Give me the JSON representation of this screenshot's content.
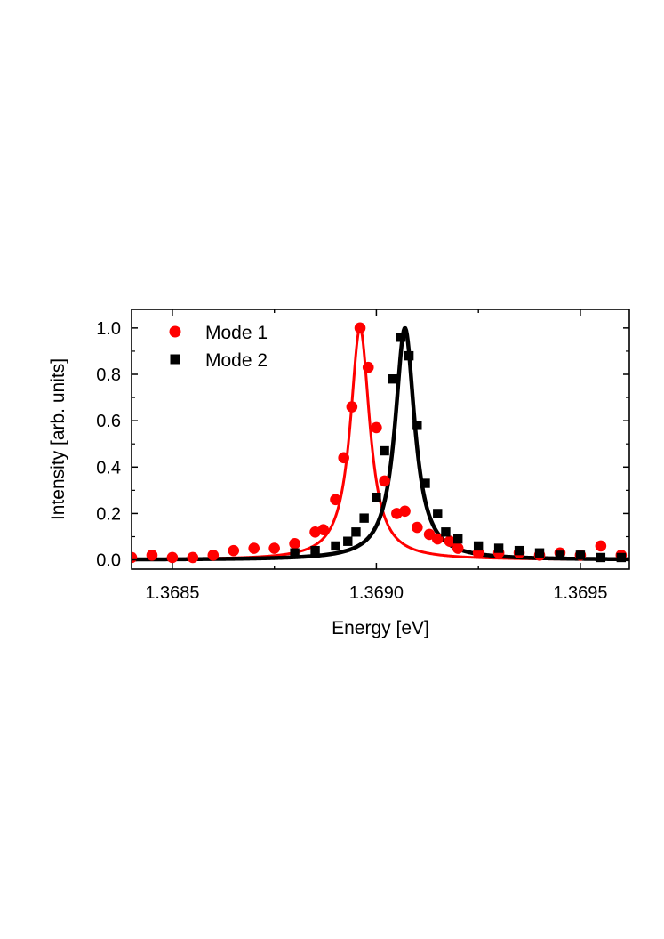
{
  "chart_data": {
    "type": "scatter",
    "title": "",
    "xlabel": "Energy [eV]",
    "ylabel": "Intensity [arb. units]",
    "xlim": [
      1.3684,
      1.36962
    ],
    "ylim": [
      -0.04,
      1.08
    ],
    "xticks": [
      1.3685,
      1.369,
      1.3695
    ],
    "xtick_labels": [
      "1.3685",
      "1.3690",
      "1.3695"
    ],
    "yticks": [
      0.0,
      0.2,
      0.4,
      0.6,
      0.8,
      1.0
    ],
    "ytick_labels": [
      "0.0",
      "0.2",
      "0.4",
      "0.6",
      "0.8",
      "1.0"
    ],
    "legend_position": "top-left",
    "series": [
      {
        "name": "Mode 1",
        "label": "Mode 1",
        "marker": "circle",
        "color": "#ff0000",
        "fit": {
          "model": "lorentzian",
          "center": 1.36896,
          "fwhm": 5.75e-05,
          "amplitude": 1.0,
          "offset": 0.0
        },
        "x": [
          1.3684,
          1.36845,
          1.3685,
          1.36855,
          1.3686,
          1.36865,
          1.3687,
          1.36875,
          1.3688,
          1.36885,
          1.36887,
          1.3689,
          1.36892,
          1.36894,
          1.36896,
          1.36898,
          1.369,
          1.36902,
          1.36905,
          1.36907,
          1.3691,
          1.36913,
          1.36915,
          1.36918,
          1.3692,
          1.36925,
          1.3693,
          1.36935,
          1.3694,
          1.36945,
          1.3695,
          1.36955,
          1.3696
        ],
        "y": [
          0.01,
          0.02,
          0.01,
          0.01,
          0.02,
          0.04,
          0.05,
          0.05,
          0.07,
          0.12,
          0.13,
          0.26,
          0.44,
          0.66,
          1.0,
          0.83,
          0.57,
          0.34,
          0.2,
          0.21,
          0.14,
          0.11,
          0.09,
          0.08,
          0.05,
          0.03,
          0.03,
          0.03,
          0.02,
          0.03,
          0.02,
          0.06,
          0.02
        ]
      },
      {
        "name": "Mode 2",
        "label": "Mode 2",
        "marker": "square",
        "color": "#000000",
        "fit": {
          "model": "lorentzian",
          "center": 1.36907,
          "fwhm": 5.8e-05,
          "amplitude": 1.0,
          "offset": 0.0
        },
        "x": [
          1.3688,
          1.36885,
          1.3689,
          1.36893,
          1.36895,
          1.36897,
          1.369,
          1.36902,
          1.36904,
          1.36906,
          1.36908,
          1.3691,
          1.36912,
          1.36915,
          1.36917,
          1.3692,
          1.36925,
          1.3693,
          1.36935,
          1.3694,
          1.36945,
          1.3695,
          1.36955,
          1.3696
        ],
        "y": [
          0.03,
          0.04,
          0.06,
          0.08,
          0.12,
          0.18,
          0.27,
          0.47,
          0.78,
          0.96,
          0.88,
          0.58,
          0.33,
          0.2,
          0.12,
          0.09,
          0.06,
          0.05,
          0.04,
          0.03,
          0.02,
          0.02,
          0.01,
          0.01
        ]
      }
    ]
  }
}
